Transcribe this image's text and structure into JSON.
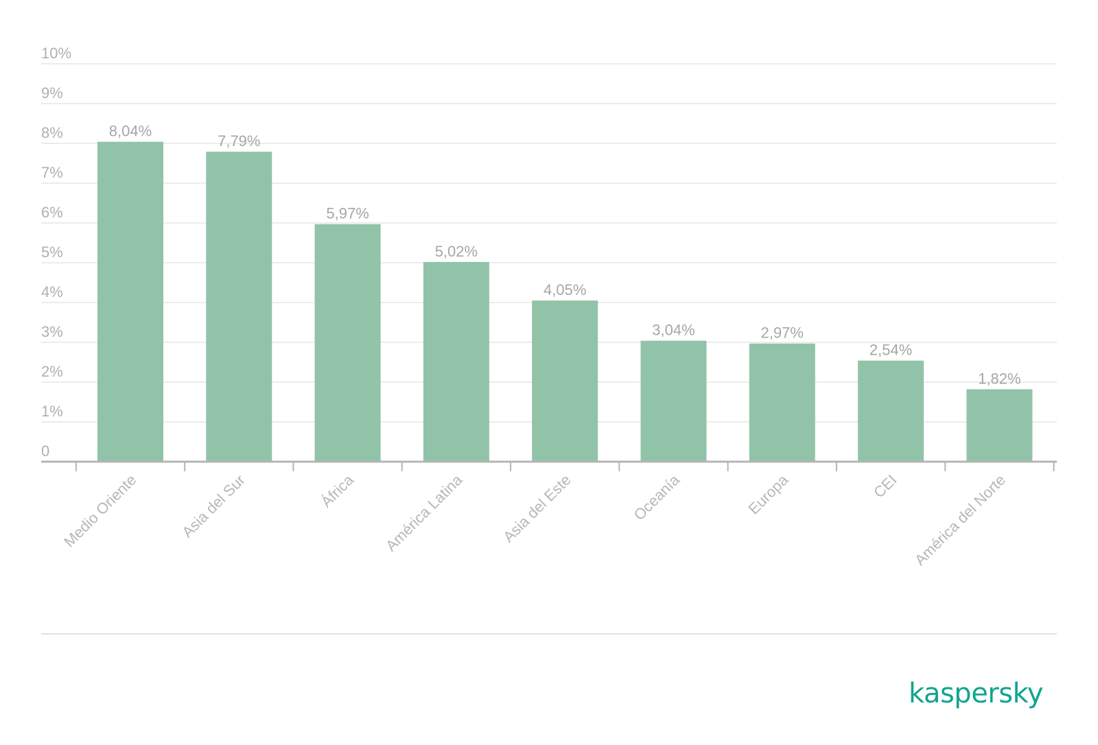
{
  "chart_data": {
    "type": "bar",
    "categories": [
      "Medio Oriente",
      "Asia del Sur",
      "África",
      "América Latina",
      "Asia del Este",
      "Oceanía",
      "Europa",
      "CEI",
      "América del Norte"
    ],
    "values": [
      8.04,
      7.79,
      5.97,
      5.02,
      4.05,
      3.04,
      2.97,
      2.54,
      1.82
    ],
    "data_labels": [
      "8,04%",
      "7,79%",
      "5,97%",
      "5,02%",
      "4,05%",
      "3,04%",
      "2,97%",
      "2,54%",
      "1,82%"
    ],
    "y_ticks": [
      0,
      1,
      2,
      3,
      4,
      5,
      6,
      7,
      8,
      9,
      10
    ],
    "y_tick_labels": [
      "0",
      "1%",
      "2%",
      "3%",
      "4%",
      "5%",
      "6%",
      "7%",
      "8%",
      "9%",
      "10%"
    ],
    "ylim": [
      0,
      10
    ],
    "grid": true,
    "title": "",
    "xlabel": "",
    "ylabel": ""
  },
  "colors": {
    "bar": "#91c3a8",
    "brand": "#10a58f",
    "grid": "#e6e6e6",
    "axis": "#b5b5b5"
  },
  "branding": {
    "logo_text": "kaspersky"
  }
}
